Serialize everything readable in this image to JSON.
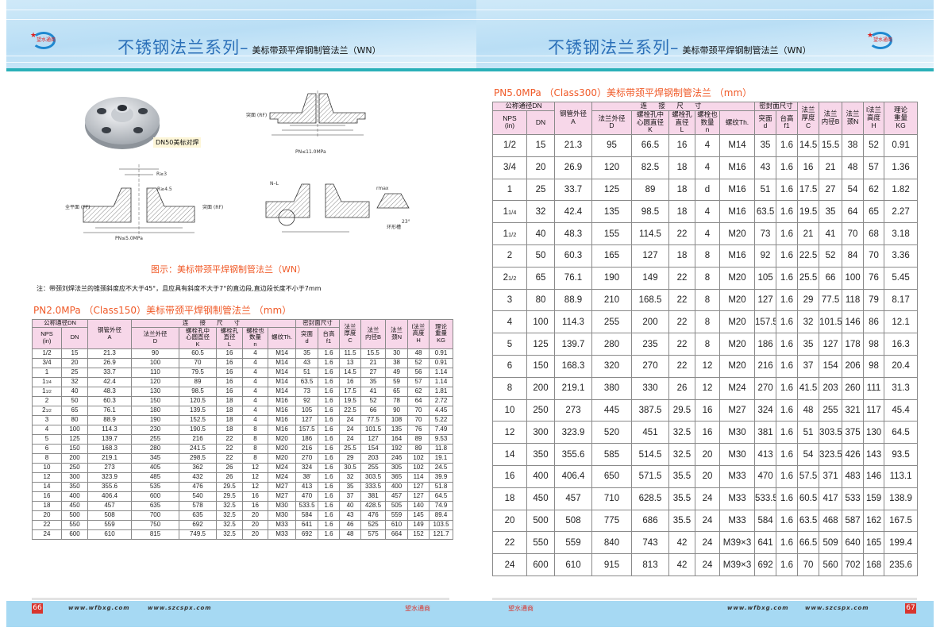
{
  "header": {
    "brand": "望水通商",
    "series_title": "不锈钢法兰系列–",
    "subtitle": "美标带颈平焊钢制管法兰（WN）"
  },
  "figures": {
    "photo_caption": "DN50美标对焊",
    "labels": {
      "rf": "突面\n(RF)",
      "ff": "全平面\n(FF)",
      "pn11": "PN≤11.0MPa",
      "pn5": "PN≤5.0MPa",
      "ring_groove": "环形槽",
      "r3": "R≥3",
      "r45": "R≥4.5",
      "nl": "N–L",
      "rmax": "rmax",
      "angle": "23°"
    },
    "caption": "图示：美标带颈平焊钢制管法兰（WN）",
    "note": "注：带颈刘焊法兰的锥颈斜度应不大于45°，且应具有斜度不大于7°的直边段,直边段长度不小于7mm"
  },
  "headers": {
    "dn_group": "公称通径DN",
    "pipe_od": "钢管外径\nA",
    "connection": "连 接 尺 寸",
    "seal": "密封面尺寸",
    "thickness": "法兰\n厚度\nC",
    "bore": "法兰\n内径B",
    "neck": "法兰\n颈N",
    "height": "l法兰\n高度\nH",
    "weight": "理论\n重量\nKG",
    "nps": "NPS\n(in)",
    "dn": "DN",
    "flange_od": "法兰外径\nD",
    "bolt_circle": "螺栓孔中\n心圆直径\nK",
    "bolt_hole": "螺栓孔\n直径\nL",
    "bolt_count": "螺栓也\n数量\nn",
    "thread": "螺纹Th.",
    "raised_face": "突面\nd",
    "face_height": "台高\nf1"
  },
  "tables": {
    "class150": {
      "title": "PN2.0MPa （Class150）美标带颈平焊钢制管法兰 （mm）",
      "rows": [
        [
          "1/2",
          "15",
          "21.3",
          "90",
          "60.5",
          "16",
          "4",
          "M14",
          "35",
          "1.6",
          "11.5",
          "15.5",
          "30",
          "48",
          "0.91"
        ],
        [
          "3/4",
          "20",
          "26.9",
          "100",
          "70",
          "16",
          "4",
          "M14",
          "43",
          "1.6",
          "13",
          "21",
          "38",
          "52",
          "0.91"
        ],
        [
          "1",
          "25",
          "33.7",
          "110",
          "79.5",
          "16",
          "4",
          "M14",
          "51",
          "1.6",
          "14.5",
          "27",
          "49",
          "56",
          "1.14"
        ],
        [
          "1 1/4",
          "32",
          "42.4",
          "120",
          "89",
          "16",
          "4",
          "M14",
          "63.5",
          "1.6",
          "16",
          "35",
          "59",
          "57",
          "1.14"
        ],
        [
          "1 1/2",
          "40",
          "48.3",
          "130",
          "98.5",
          "16",
          "4",
          "M14",
          "73",
          "1.6",
          "17.5",
          "41",
          "65",
          "62",
          "1.81"
        ],
        [
          "2",
          "50",
          "60.3",
          "150",
          "120.5",
          "18",
          "4",
          "M16",
          "92",
          "1.6",
          "19.5",
          "52",
          "78",
          "64",
          "2.72"
        ],
        [
          "2 1/2",
          "65",
          "76.1",
          "180",
          "139.5",
          "18",
          "4",
          "M16",
          "105",
          "1.6",
          "22.5",
          "66",
          "90",
          "70",
          "4.45"
        ],
        [
          "3",
          "80",
          "88.9",
          "190",
          "152.5",
          "18",
          "4",
          "M16",
          "127",
          "1.6",
          "24",
          "77.5",
          "108",
          "70",
          "5.22"
        ],
        [
          "4",
          "100",
          "114.3",
          "230",
          "190.5",
          "18",
          "8",
          "M16",
          "157.5",
          "1.6",
          "24",
          "101.5",
          "135",
          "76",
          "7.49"
        ],
        [
          "5",
          "125",
          "139.7",
          "255",
          "216",
          "22",
          "8",
          "M20",
          "186",
          "1.6",
          "24",
          "127",
          "164",
          "89",
          "9.53"
        ],
        [
          "6",
          "150",
          "168.3",
          "280",
          "241.5",
          "22",
          "8",
          "M20",
          "216",
          "1.6",
          "25.5",
          "154",
          "192",
          "89",
          "11.8"
        ],
        [
          "8",
          "200",
          "219.1",
          "345",
          "298.5",
          "22",
          "8",
          "M20",
          "270",
          "1.6",
          "29",
          "203",
          "246",
          "102",
          "19.1"
        ],
        [
          "10",
          "250",
          "273",
          "405",
          "362",
          "26",
          "12",
          "M24",
          "324",
          "1.6",
          "30.5",
          "255",
          "305",
          "102",
          "24.5"
        ],
        [
          "12",
          "300",
          "323.9",
          "485",
          "432",
          "26",
          "12",
          "M24",
          "38'",
          "1.6",
          "32",
          "303.5",
          "365",
          "114",
          "39.9"
        ],
        [
          "14",
          "350",
          "355.6",
          "535",
          "476",
          "29.5",
          "12",
          "M27",
          "413",
          "1.6",
          "35",
          "333.5",
          "400",
          "127",
          "51.8"
        ],
        [
          "16",
          "400",
          "406.4",
          "600",
          "540",
          "29.5",
          "16",
          "M27",
          "470",
          "1.6",
          "37",
          "381",
          "457",
          "127",
          "64.5"
        ],
        [
          "18",
          "450",
          "457",
          "635",
          "578",
          "32.5",
          "16",
          "M30",
          "533.5",
          "1.6",
          "40",
          "428.5",
          "505",
          "140",
          "74.9"
        ],
        [
          "20",
          "500",
          "508",
          "700",
          "635",
          "32.5",
          "20",
          "M30",
          "584",
          "1.6",
          "43",
          "476",
          "559",
          "145",
          "89.4"
        ],
        [
          "22",
          "550",
          "559",
          "750",
          "692",
          "32.5",
          "20",
          "M33",
          "641",
          "1.6",
          "46",
          "525",
          "610",
          "149",
          "103.5"
        ],
        [
          "24",
          "600",
          "610",
          "815",
          "749.5",
          "32.5",
          "20",
          "M33",
          "692",
          "1.6",
          "48",
          "575",
          "664",
          "152",
          "121.7"
        ]
      ]
    },
    "class300": {
      "title": "PN5.0MPa （Class300）美标带颈平焊钢制管法兰 （mm）",
      "rows": [
        [
          "1/2",
          "15",
          "21.3",
          "95",
          "66.5",
          "16",
          "4",
          "M14",
          "35",
          "1.6",
          "14.5",
          "15.5",
          "38",
          "52",
          "0.91"
        ],
        [
          "3/4",
          "20",
          "26.9",
          "120",
          "82.5",
          "18",
          "4",
          "M16",
          "43",
          "1.6",
          "16",
          "21",
          "48",
          "57",
          "1.36"
        ],
        [
          "1",
          "25",
          "33.7",
          "125",
          "89",
          "18",
          "d",
          "M16",
          "51",
          "1.6",
          "17.5",
          "27",
          "54",
          "62",
          "1.82"
        ],
        [
          "1 1/4",
          "32",
          "42.4",
          "135",
          "98.5",
          "18",
          "4",
          "M16",
          "63.5",
          "1.6",
          "19.5",
          "35",
          "64",
          "65",
          "2.27"
        ],
        [
          "1 1/2",
          "40",
          "48.3",
          "155",
          "114.5",
          "22",
          "4",
          "M20",
          "73",
          "1.6",
          "21",
          "41",
          "70",
          "68",
          "3.18"
        ],
        [
          "2",
          "50",
          "60.3",
          "165",
          "127",
          "18",
          "8",
          "M16",
          "92",
          "1.6",
          "22.5",
          "52",
          "84",
          "70",
          "3.36"
        ],
        [
          "2 1/2",
          "65",
          "76.1",
          "190",
          "149",
          "22",
          "8",
          "M20",
          "105",
          "1.6",
          "25.5",
          "66",
          "100",
          "76",
          "5.45"
        ],
        [
          "3",
          "80",
          "88.9",
          "210",
          "168.5",
          "22",
          "8",
          "M20",
          "127",
          "1.6",
          "29",
          "77.5",
          "118",
          "79",
          "8.17"
        ],
        [
          "4",
          "100",
          "114.3",
          "255",
          "200",
          "22",
          "8",
          "M20",
          "157.5",
          "1.6",
          "32",
          "101.5",
          "146",
          "86",
          "12.1"
        ],
        [
          "5",
          "125",
          "139.7",
          "280",
          "235",
          "22",
          "8",
          "M20",
          "186",
          "1.6",
          "35",
          "127",
          "178",
          "98",
          "16.3"
        ],
        [
          "6",
          "150",
          "168.3",
          "320",
          "270",
          "22",
          "12",
          "M20",
          "216",
          "1.6",
          "37",
          "154",
          "206",
          "98",
          "20.4"
        ],
        [
          "8",
          "200",
          "219.1",
          "380",
          "330",
          "26",
          "12",
          "M24",
          "270",
          "1.6",
          "41.5",
          "203",
          "260",
          "111",
          "31.3"
        ],
        [
          "10",
          "250",
          "273",
          "445",
          "387.5",
          "29.5",
          "16",
          "M27",
          "324",
          "1.6",
          "48",
          "255",
          "321",
          "117",
          "45.4"
        ],
        [
          "12",
          "300",
          "323.9",
          "520",
          "451",
          "32.5",
          "16",
          "M30",
          "381",
          "1.6",
          "51",
          "303.5",
          "375",
          "130",
          "64.5"
        ],
        [
          "14",
          "350",
          "355.6",
          "585",
          "514.5",
          "32.5",
          "20",
          "M30",
          "413",
          "1.6",
          "54",
          "323.5",
          "426",
          "143",
          "93.5"
        ],
        [
          "16",
          "400",
          "406.4",
          "650",
          "571.5",
          "35.5",
          "20",
          "M33",
          "470",
          "1.6",
          "57.5",
          "371",
          "483",
          "146",
          "113.1"
        ],
        [
          "18",
          "450",
          "457",
          "710",
          "628.5",
          "35.5",
          "24",
          "M33",
          "533.5",
          "1.6",
          "60.5",
          "417",
          "533",
          "159",
          "138.9"
        ],
        [
          "20",
          "500",
          "508",
          "775",
          "686",
          "35.5",
          "24",
          "M33",
          "584",
          "1.6",
          "63.5",
          "468",
          "587",
          "162",
          "167.5"
        ],
        [
          "22",
          "550",
          "559",
          "840",
          "743",
          "42",
          "24",
          "M39×3",
          "641",
          "1.6",
          "66.5",
          "509",
          "640",
          "165",
          "199.4"
        ],
        [
          "24",
          "600",
          "610",
          "915",
          "813",
          "42",
          "24",
          "M39×3",
          "692",
          "1.6",
          "70",
          "560",
          "702",
          "168",
          "235.6"
        ]
      ]
    }
  },
  "footer": {
    "page_left": "66",
    "page_right": "67",
    "url1": "www.wfbxg.com",
    "url2": "www.szcspx.com",
    "mark": "望水通商"
  },
  "colors": {
    "accent_title": "#f05a28",
    "header_blue": "#2a6fb8",
    "table_header_bg": "#f7d7e9",
    "footer_band": "#a6d9f3",
    "page_number_bg": "#d8352e"
  }
}
